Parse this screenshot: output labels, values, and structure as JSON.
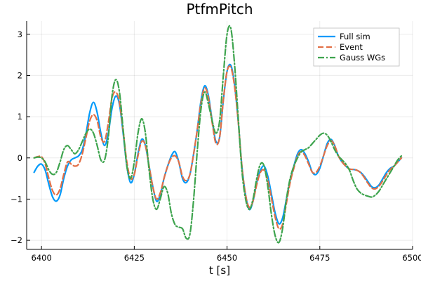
{
  "chart_data": {
    "type": "line",
    "title": "PtfmPitch",
    "xlabel": "t [s]",
    "ylabel": "",
    "xlim": [
      6396,
      6500
    ],
    "ylim": [
      -2.22,
      3.32
    ],
    "xticks": [
      6400,
      6425,
      6450,
      6475,
      6500
    ],
    "yticks": [
      -2,
      -1,
      0,
      1,
      2,
      3
    ],
    "grid": true,
    "legend_position": "top-right",
    "series": [
      {
        "name": "Full sim",
        "color": "#009AFA",
        "dash": "solid",
        "x": [
          6398,
          6399,
          6400,
          6401,
          6402,
          6403,
          6404,
          6405,
          6406,
          6407,
          6408,
          6409,
          6410,
          6411,
          6412,
          6413,
          6414,
          6415,
          6416,
          6417,
          6418,
          6419,
          6420,
          6421,
          6422,
          6423,
          6424,
          6425,
          6426,
          6427,
          6428,
          6429,
          6430,
          6431,
          6432,
          6433,
          6434,
          6435,
          6436,
          6437,
          6438,
          6439,
          6440,
          6441,
          6442,
          6443,
          6444,
          6445,
          6446,
          6447,
          6448,
          6449,
          6450,
          6451,
          6452,
          6453,
          6454,
          6455,
          6456,
          6457,
          6458,
          6459,
          6460,
          6461,
          6462,
          6463,
          6464,
          6465,
          6466,
          6467,
          6468,
          6469,
          6470,
          6471,
          6472,
          6473,
          6474,
          6475,
          6476,
          6477,
          6478,
          6479,
          6480,
          6481,
          6482,
          6483,
          6484,
          6485,
          6486,
          6487,
          6488,
          6489,
          6490,
          6491,
          6492,
          6493,
          6494,
          6495,
          6496,
          6497
        ],
        "y": [
          -0.35,
          -0.2,
          -0.15,
          -0.3,
          -0.65,
          -0.95,
          -1.05,
          -0.9,
          -0.5,
          -0.2,
          -0.05,
          0,
          0.05,
          0.2,
          0.6,
          1.1,
          1.35,
          1.1,
          0.6,
          0.3,
          0.6,
          1.2,
          1.5,
          1.3,
          0.6,
          -0.2,
          -0.6,
          -0.4,
          0.1,
          0.45,
          0.3,
          -0.2,
          -0.7,
          -1.05,
          -0.9,
          -0.5,
          -0.2,
          0.05,
          0.15,
          -0.1,
          -0.5,
          -0.6,
          -0.4,
          0.1,
          0.7,
          1.4,
          1.75,
          1.5,
          0.9,
          0.4,
          0.5,
          1.4,
          2.1,
          2.25,
          1.8,
          0.9,
          -0.2,
          -0.9,
          -1.25,
          -1.05,
          -0.6,
          -0.3,
          -0.2,
          -0.45,
          -0.9,
          -1.35,
          -1.6,
          -1.45,
          -1.0,
          -0.55,
          -0.2,
          0.1,
          0.2,
          0.1,
          -0.1,
          -0.35,
          -0.4,
          -0.25,
          0.05,
          0.35,
          0.45,
          0.3,
          0.05,
          -0.1,
          -0.2,
          -0.27,
          -0.28,
          -0.3,
          -0.35,
          -0.45,
          -0.58,
          -0.7,
          -0.72,
          -0.65,
          -0.5,
          -0.35,
          -0.25,
          -0.2,
          -0.1,
          0.0
        ]
      },
      {
        "name": "Event",
        "color": "#E26F46",
        "dash": "dashed",
        "x": [
          6398,
          6399,
          6400,
          6401,
          6402,
          6403,
          6404,
          6405,
          6406,
          6407,
          6408,
          6409,
          6410,
          6411,
          6412,
          6413,
          6414,
          6415,
          6416,
          6417,
          6418,
          6419,
          6420,
          6421,
          6422,
          6423,
          6424,
          6425,
          6426,
          6427,
          6428,
          6429,
          6430,
          6431,
          6432,
          6433,
          6434,
          6435,
          6436,
          6437,
          6438,
          6439,
          6440,
          6441,
          6442,
          6443,
          6444,
          6445,
          6446,
          6447,
          6448,
          6449,
          6450,
          6451,
          6452,
          6453,
          6454,
          6455,
          6456,
          6457,
          6458,
          6459,
          6460,
          6461,
          6462,
          6463,
          6464,
          6465,
          6466,
          6467,
          6468,
          6469,
          6470,
          6471,
          6472,
          6473,
          6474,
          6475,
          6476,
          6477,
          6478,
          6479,
          6480,
          6481,
          6482,
          6483,
          6484,
          6485,
          6486,
          6487,
          6488,
          6489,
          6490,
          6491,
          6492,
          6493,
          6494,
          6495,
          6496,
          6497
        ],
        "y": [
          0.0,
          0.03,
          0.03,
          -0.15,
          -0.5,
          -0.8,
          -0.9,
          -0.75,
          -0.4,
          -0.1,
          -0.15,
          -0.2,
          -0.15,
          0.1,
          0.5,
          0.9,
          1.05,
          0.9,
          0.5,
          0.4,
          0.85,
          1.45,
          1.6,
          1.35,
          0.65,
          -0.1,
          -0.5,
          -0.4,
          0.05,
          0.4,
          0.3,
          -0.2,
          -0.7,
          -1.0,
          -0.85,
          -0.5,
          -0.2,
          0.0,
          0.05,
          -0.1,
          -0.45,
          -0.55,
          -0.4,
          0.1,
          0.7,
          1.35,
          1.7,
          1.45,
          0.85,
          0.35,
          0.5,
          1.4,
          2.1,
          2.2,
          1.75,
          0.9,
          -0.2,
          -0.9,
          -1.2,
          -1.05,
          -0.65,
          -0.35,
          -0.3,
          -0.55,
          -1.0,
          -1.45,
          -1.72,
          -1.6,
          -1.1,
          -0.6,
          -0.25,
          0.05,
          0.15,
          0.05,
          -0.15,
          -0.35,
          -0.35,
          -0.2,
          0.05,
          0.3,
          0.42,
          0.3,
          0.05,
          -0.1,
          -0.2,
          -0.27,
          -0.28,
          -0.3,
          -0.36,
          -0.48,
          -0.62,
          -0.73,
          -0.75,
          -0.68,
          -0.55,
          -0.4,
          -0.28,
          -0.2,
          -0.1,
          0.0
        ]
      },
      {
        "name": "Gauss WGs",
        "color": "#3EA44E",
        "dash": "dashdot",
        "x": [
          6398,
          6399,
          6400,
          6401,
          6402,
          6403,
          6404,
          6405,
          6406,
          6407,
          6408,
          6409,
          6410,
          6411,
          6412,
          6413,
          6414,
          6415,
          6416,
          6417,
          6418,
          6419,
          6420,
          6421,
          6422,
          6423,
          6424,
          6425,
          6426,
          6427,
          6428,
          6429,
          6430,
          6431,
          6432,
          6433,
          6434,
          6435,
          6436,
          6437,
          6438,
          6439,
          6440,
          6441,
          6442,
          6443,
          6444,
          6445,
          6446,
          6447,
          6448,
          6449,
          6450,
          6451,
          6452,
          6453,
          6454,
          6455,
          6456,
          6457,
          6458,
          6459,
          6460,
          6461,
          6462,
          6463,
          6464,
          6465,
          6466,
          6467,
          6468,
          6469,
          6470,
          6471,
          6472,
          6473,
          6474,
          6475,
          6476,
          6477,
          6478,
          6479,
          6480,
          6481,
          6482,
          6483,
          6484,
          6485,
          6486,
          6487,
          6488,
          6489,
          6490,
          6491,
          6492,
          6493,
          6494,
          6495,
          6496,
          6497
        ],
        "y": [
          0.0,
          0.02,
          0.0,
          -0.1,
          -0.3,
          -0.4,
          -0.35,
          -0.1,
          0.2,
          0.3,
          0.2,
          0.1,
          0.2,
          0.4,
          0.6,
          0.7,
          0.6,
          0.3,
          -0.05,
          -0.05,
          0.5,
          1.5,
          1.9,
          1.6,
          0.7,
          -0.2,
          -0.5,
          -0.1,
          0.6,
          0.95,
          0.6,
          -0.3,
          -1.0,
          -1.25,
          -1.0,
          -0.7,
          -0.85,
          -1.35,
          -1.62,
          -1.68,
          -1.72,
          -1.95,
          -1.85,
          -1.0,
          0.2,
          1.2,
          1.6,
          1.3,
          0.9,
          0.6,
          0.9,
          2.0,
          3.0,
          3.15,
          2.3,
          1.0,
          -0.3,
          -1.0,
          -1.25,
          -1.0,
          -0.5,
          -0.15,
          -0.2,
          -0.7,
          -1.4,
          -1.9,
          -2.05,
          -1.7,
          -1.0,
          -0.5,
          -0.2,
          0.0,
          0.15,
          0.2,
          0.25,
          0.35,
          0.45,
          0.55,
          0.6,
          0.55,
          0.4,
          0.2,
          0.05,
          -0.05,
          -0.15,
          -0.3,
          -0.55,
          -0.75,
          -0.85,
          -0.9,
          -0.93,
          -0.95,
          -0.9,
          -0.8,
          -0.65,
          -0.5,
          -0.35,
          -0.2,
          -0.05,
          0.05
        ]
      }
    ]
  }
}
